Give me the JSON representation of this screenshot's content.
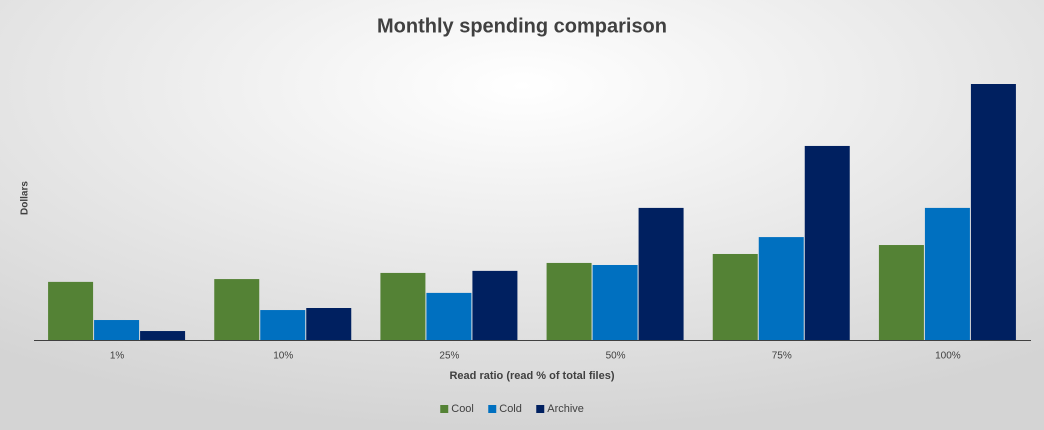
{
  "chart_data": {
    "type": "bar",
    "title": "Monthly spending comparison",
    "x_label": "Read ratio (read % of total files)",
    "y_label": "Dollars",
    "categories": [
      "1%",
      "10%",
      "25%",
      "50%",
      "75%",
      "100%"
    ],
    "series": [
      {
        "name": "Cool",
        "color": "#548235",
        "values": [
          22.7,
          23.8,
          26.2,
          30.1,
          33.6,
          37.1
        ]
      },
      {
        "name": "Cold",
        "color": "#0070c0",
        "values": [
          7.8,
          11.7,
          18.4,
          29.3,
          40.2,
          51.6
        ]
      },
      {
        "name": "Archive",
        "color": "#002060",
        "values": [
          3.5,
          12.5,
          27.0,
          51.6,
          75.8,
          100
        ]
      }
    ],
    "ylim": [
      0,
      100
    ],
    "legend": "bottom"
  }
}
